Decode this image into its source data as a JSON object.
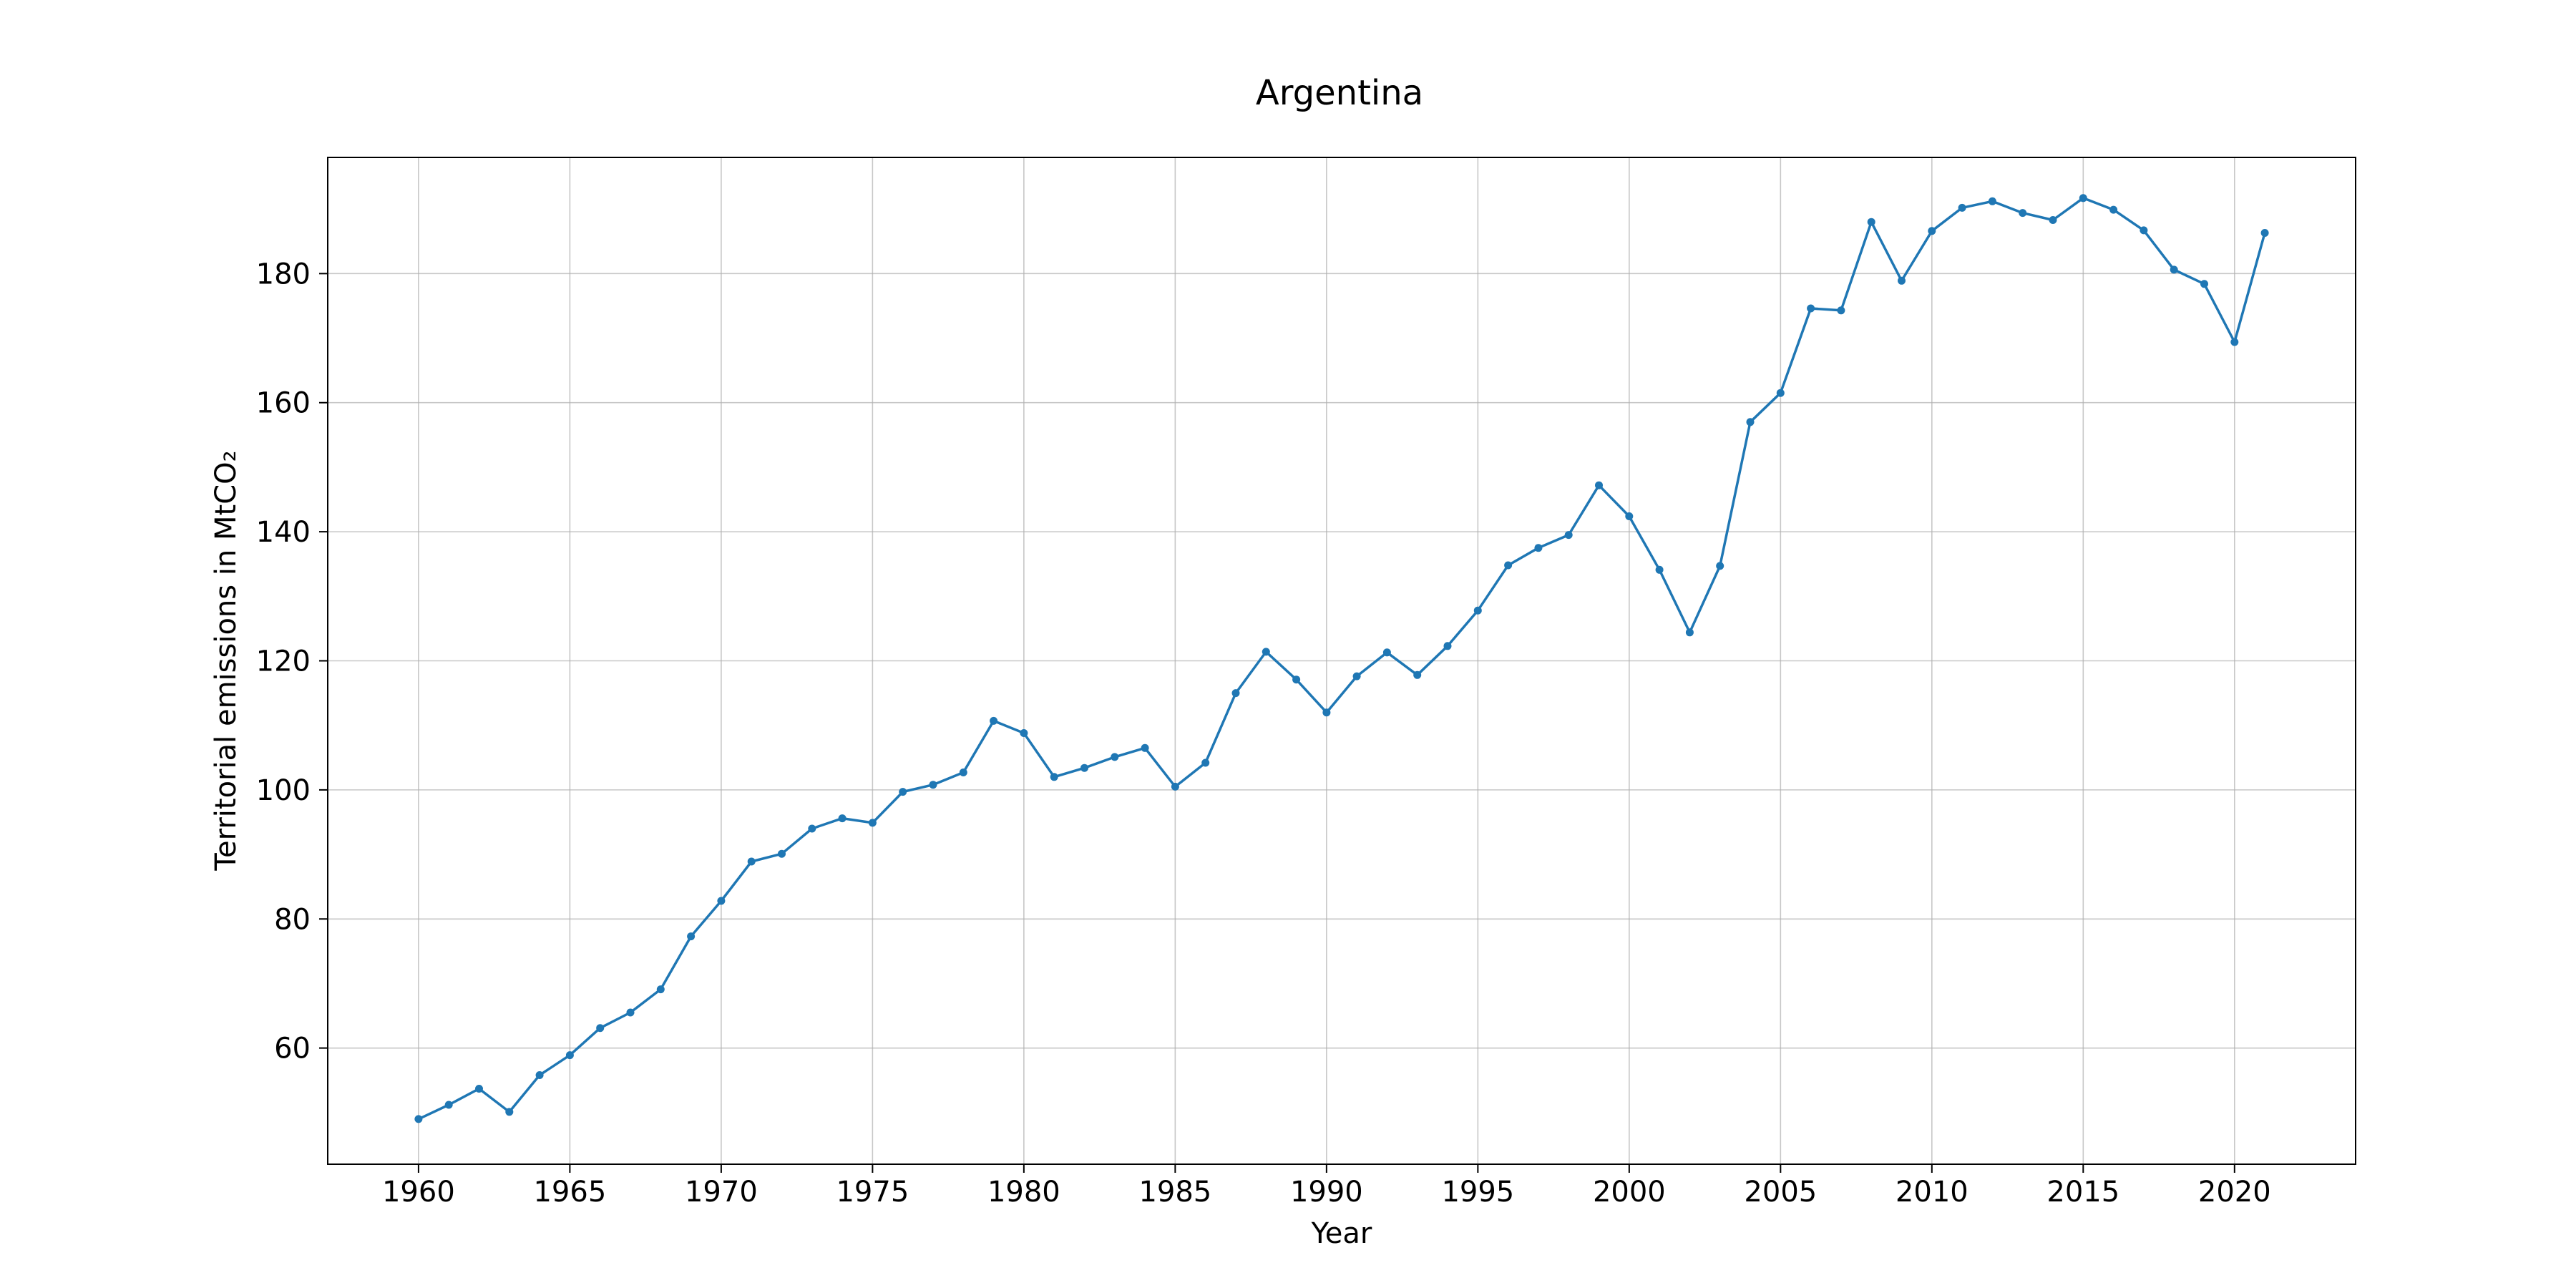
{
  "chart_data": {
    "type": "line",
    "title": "Argentina",
    "xlabel": "Year",
    "ylabel": "Territorial emissions in MtCO₂",
    "xlim": [
      1957,
      2024
    ],
    "ylim": [
      42,
      198
    ],
    "xticks": [
      1960,
      1965,
      1970,
      1975,
      1980,
      1985,
      1990,
      1995,
      2000,
      2005,
      2010,
      2015,
      2020
    ],
    "yticks": [
      60,
      80,
      100,
      120,
      140,
      160,
      180
    ],
    "grid": true,
    "legend": "none",
    "color": "#1f77b4",
    "x": [
      1960,
      1961,
      1962,
      1963,
      1964,
      1965,
      1966,
      1967,
      1968,
      1969,
      1970,
      1971,
      1972,
      1973,
      1974,
      1975,
      1976,
      1977,
      1978,
      1979,
      1980,
      1981,
      1982,
      1983,
      1984,
      1985,
      1986,
      1987,
      1988,
      1989,
      1990,
      1991,
      1992,
      1993,
      1994,
      1995,
      1996,
      1997,
      1998,
      1999,
      2000,
      2001,
      2002,
      2003,
      2004,
      2005,
      2006,
      2007,
      2008,
      2009,
      2010,
      2011,
      2012,
      2013,
      2014,
      2015,
      2016,
      2017,
      2018,
      2019,
      2020,
      2021
    ],
    "y": [
      49.0,
      51.2,
      53.7,
      50.1,
      55.8,
      58.9,
      63.1,
      65.5,
      69.1,
      77.3,
      82.8,
      88.9,
      90.1,
      94.0,
      95.6,
      94.9,
      99.7,
      100.8,
      102.7,
      110.7,
      108.8,
      102.0,
      103.4,
      105.1,
      106.5,
      100.5,
      104.2,
      115.0,
      121.4,
      117.1,
      112.0,
      117.6,
      121.3,
      117.8,
      122.3,
      127.8,
      134.8,
      137.5,
      139.5,
      147.2,
      142.4,
      134.1,
      124.4,
      134.7,
      157.0,
      161.5,
      174.6,
      174.3,
      188.0,
      178.9,
      186.6,
      190.2,
      191.2,
      189.4,
      188.3,
      191.7,
      189.9,
      186.7,
      180.6,
      178.4,
      169.4,
      186.3
    ]
  }
}
